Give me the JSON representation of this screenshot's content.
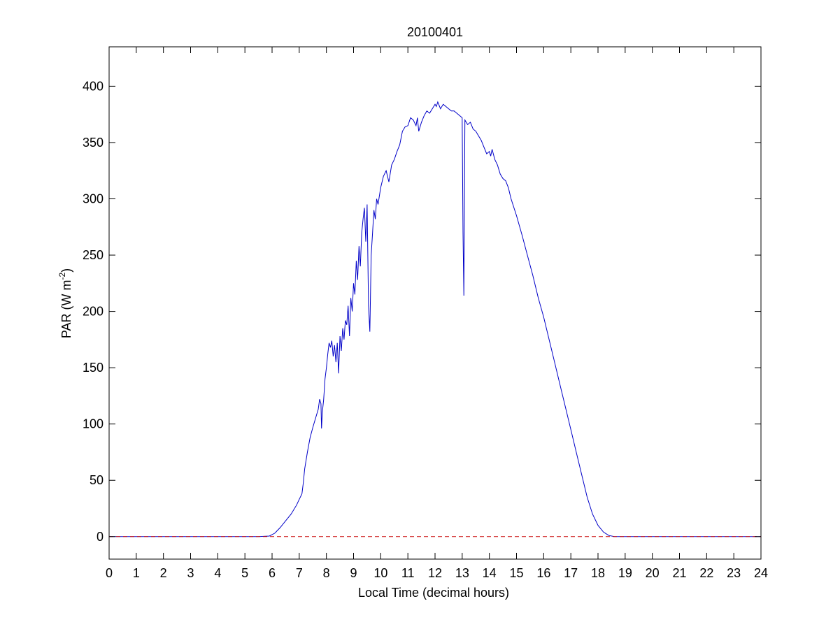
{
  "chart_data": {
    "type": "line",
    "title": "20100401",
    "xlabel": "Local Time (decimal hours)",
    "ylabel": {
      "main": "PAR (W m",
      "superscript": "-2",
      "close": ")"
    },
    "xlim": [
      0,
      24
    ],
    "ylim": [
      -20,
      435
    ],
    "x_ticks": [
      0,
      1,
      2,
      3,
      4,
      5,
      6,
      7,
      8,
      9,
      10,
      11,
      12,
      13,
      14,
      15,
      16,
      17,
      18,
      19,
      20,
      21,
      22,
      23,
      24
    ],
    "y_ticks": [
      0,
      50,
      100,
      150,
      200,
      250,
      300,
      350,
      400
    ],
    "grid": false,
    "series": [
      {
        "line_style": "solid",
        "color": "#0000c8",
        "points": [
          [
            0,
            0
          ],
          [
            5.5,
            0
          ],
          [
            5.9,
            0.5
          ],
          [
            6.1,
            3
          ],
          [
            6.3,
            8
          ],
          [
            6.5,
            14
          ],
          [
            6.7,
            20
          ],
          [
            6.9,
            28
          ],
          [
            7.0,
            33
          ],
          [
            7.1,
            38
          ],
          [
            7.15,
            48
          ],
          [
            7.2,
            60
          ],
          [
            7.3,
            75
          ],
          [
            7.4,
            88
          ],
          [
            7.5,
            97
          ],
          [
            7.6,
            105
          ],
          [
            7.7,
            113
          ],
          [
            7.75,
            122
          ],
          [
            7.8,
            118
          ],
          [
            7.82,
            96
          ],
          [
            7.85,
            110
          ],
          [
            7.9,
            122
          ],
          [
            7.95,
            140
          ],
          [
            8.0,
            150
          ],
          [
            8.05,
            162
          ],
          [
            8.1,
            172
          ],
          [
            8.15,
            168
          ],
          [
            8.2,
            174
          ],
          [
            8.25,
            160
          ],
          [
            8.3,
            170
          ],
          [
            8.35,
            155
          ],
          [
            8.4,
            172
          ],
          [
            8.45,
            145
          ],
          [
            8.5,
            178
          ],
          [
            8.55,
            165
          ],
          [
            8.6,
            185
          ],
          [
            8.65,
            175
          ],
          [
            8.7,
            192
          ],
          [
            8.75,
            188
          ],
          [
            8.8,
            205
          ],
          [
            8.85,
            178
          ],
          [
            8.9,
            212
          ],
          [
            8.95,
            200
          ],
          [
            9.0,
            225
          ],
          [
            9.05,
            215
          ],
          [
            9.1,
            245
          ],
          [
            9.15,
            228
          ],
          [
            9.2,
            258
          ],
          [
            9.25,
            240
          ],
          [
            9.3,
            270
          ],
          [
            9.35,
            282
          ],
          [
            9.4,
            292
          ],
          [
            9.45,
            262
          ],
          [
            9.5,
            295
          ],
          [
            9.55,
            205
          ],
          [
            9.6,
            182
          ],
          [
            9.65,
            250
          ],
          [
            9.7,
            270
          ],
          [
            9.75,
            290
          ],
          [
            9.8,
            282
          ],
          [
            9.85,
            300
          ],
          [
            9.9,
            295
          ],
          [
            10.0,
            310
          ],
          [
            10.1,
            320
          ],
          [
            10.2,
            325
          ],
          [
            10.3,
            315
          ],
          [
            10.4,
            330
          ],
          [
            10.5,
            335
          ],
          [
            10.6,
            342
          ],
          [
            10.7,
            348
          ],
          [
            10.8,
            360
          ],
          [
            10.9,
            364
          ],
          [
            11.0,
            365
          ],
          [
            11.1,
            372
          ],
          [
            11.2,
            370
          ],
          [
            11.3,
            365
          ],
          [
            11.35,
            372
          ],
          [
            11.4,
            360
          ],
          [
            11.5,
            368
          ],
          [
            11.6,
            374
          ],
          [
            11.7,
            378
          ],
          [
            11.8,
            376
          ],
          [
            11.9,
            380
          ],
          [
            12.0,
            384
          ],
          [
            12.05,
            382
          ],
          [
            12.1,
            386
          ],
          [
            12.2,
            380
          ],
          [
            12.3,
            384
          ],
          [
            12.4,
            382
          ],
          [
            12.5,
            380
          ],
          [
            12.6,
            378
          ],
          [
            12.7,
            378
          ],
          [
            12.8,
            376
          ],
          [
            12.9,
            374
          ],
          [
            13.0,
            372
          ],
          [
            13.03,
            270
          ],
          [
            13.06,
            214
          ],
          [
            13.1,
            370
          ],
          [
            13.2,
            366
          ],
          [
            13.3,
            368
          ],
          [
            13.4,
            362
          ],
          [
            13.5,
            360
          ],
          [
            13.6,
            356
          ],
          [
            13.7,
            352
          ],
          [
            13.8,
            346
          ],
          [
            13.9,
            340
          ],
          [
            14.0,
            342
          ],
          [
            14.05,
            338
          ],
          [
            14.1,
            344
          ],
          [
            14.2,
            335
          ],
          [
            14.3,
            330
          ],
          [
            14.4,
            322
          ],
          [
            14.5,
            318
          ],
          [
            14.6,
            316
          ],
          [
            14.7,
            310
          ],
          [
            14.8,
            300
          ],
          [
            15.0,
            285
          ],
          [
            15.2,
            268
          ],
          [
            15.4,
            250
          ],
          [
            15.6,
            232
          ],
          [
            15.8,
            212
          ],
          [
            16.0,
            195
          ],
          [
            16.2,
            175
          ],
          [
            16.4,
            155
          ],
          [
            16.6,
            135
          ],
          [
            16.8,
            115
          ],
          [
            17.0,
            95
          ],
          [
            17.2,
            75
          ],
          [
            17.4,
            55
          ],
          [
            17.6,
            35
          ],
          [
            17.8,
            20
          ],
          [
            18.0,
            10
          ],
          [
            18.2,
            4
          ],
          [
            18.4,
            1
          ],
          [
            18.6,
            0
          ],
          [
            19,
            0
          ],
          [
            24,
            0
          ]
        ]
      },
      {
        "line_style": "dashed",
        "color": "#c80000",
        "points": [
          [
            0,
            0
          ],
          [
            24,
            0
          ]
        ]
      }
    ]
  }
}
